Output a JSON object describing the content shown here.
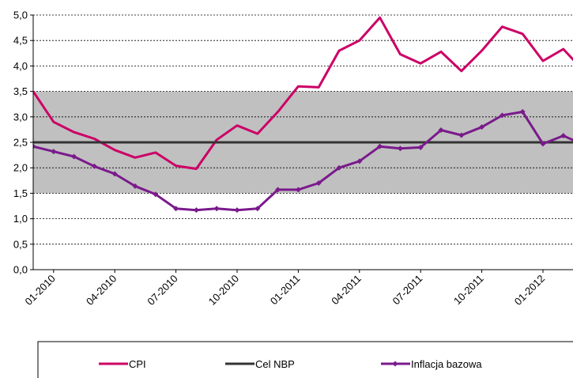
{
  "chart_data": {
    "type": "line",
    "categories": [
      null,
      "01-2010",
      null,
      null,
      "04-2010",
      null,
      null,
      "07-2010",
      null,
      null,
      "10-2010",
      null,
      null,
      "01-2011",
      null,
      null,
      "04-2011",
      null,
      null,
      "07-2011",
      null,
      null,
      "10-2011",
      null,
      null,
      "01-2012",
      null,
      null
    ],
    "series": [
      {
        "name": "CPI",
        "color": "#cc0066",
        "marker": false,
        "values": [
          3.5,
          2.9,
          2.7,
          2.57,
          2.35,
          2.2,
          2.3,
          2.04,
          1.98,
          2.55,
          2.83,
          2.67,
          3.1,
          3.6,
          3.58,
          4.3,
          4.5,
          4.95,
          4.23,
          4.05,
          4.28,
          3.9,
          4.3,
          4.77,
          4.63,
          4.1,
          4.33,
          3.9
        ]
      },
      {
        "name": "Cel NBP",
        "color": "#333333",
        "marker": false,
        "values": [
          2.5,
          2.5,
          2.5,
          2.5,
          2.5,
          2.5,
          2.5,
          2.5,
          2.5,
          2.5,
          2.5,
          2.5,
          2.5,
          2.5,
          2.5,
          2.5,
          2.5,
          2.5,
          2.5,
          2.5,
          2.5,
          2.5,
          2.5,
          2.5,
          2.5,
          2.5,
          2.5,
          2.5
        ]
      },
      {
        "name": "Inflacja bazowa",
        "color": "#7a1a8c",
        "marker": true,
        "values": [
          2.42,
          2.32,
          2.22,
          2.03,
          1.88,
          1.64,
          1.48,
          1.2,
          1.17,
          1.2,
          1.17,
          1.2,
          1.57,
          1.57,
          1.7,
          2.0,
          2.13,
          2.42,
          2.38,
          2.4,
          2.74,
          2.64,
          2.8,
          3.03,
          3.1,
          2.47,
          2.63,
          2.45
        ]
      }
    ],
    "band": [
      1.5,
      3.5
    ],
    "band_color": "#c0c0c0",
    "ylim": [
      0,
      5
    ],
    "yticks": [
      {
        "value": 0,
        "label": "0,0"
      },
      {
        "value": 0.5,
        "label": "0,5"
      },
      {
        "value": 1,
        "label": "1,0"
      },
      {
        "value": 1.5,
        "label": "1,5"
      },
      {
        "value": 2,
        "label": "2,0"
      },
      {
        "value": 2.5,
        "label": "2,5"
      },
      {
        "value": 3,
        "label": "3,0"
      },
      {
        "value": 3.5,
        "label": "3,5"
      },
      {
        "value": 4,
        "label": "4,0"
      },
      {
        "value": 4.5,
        "label": "4,5"
      },
      {
        "value": 5,
        "label": "5,0"
      }
    ],
    "grid": true,
    "legend": "bottom"
  }
}
